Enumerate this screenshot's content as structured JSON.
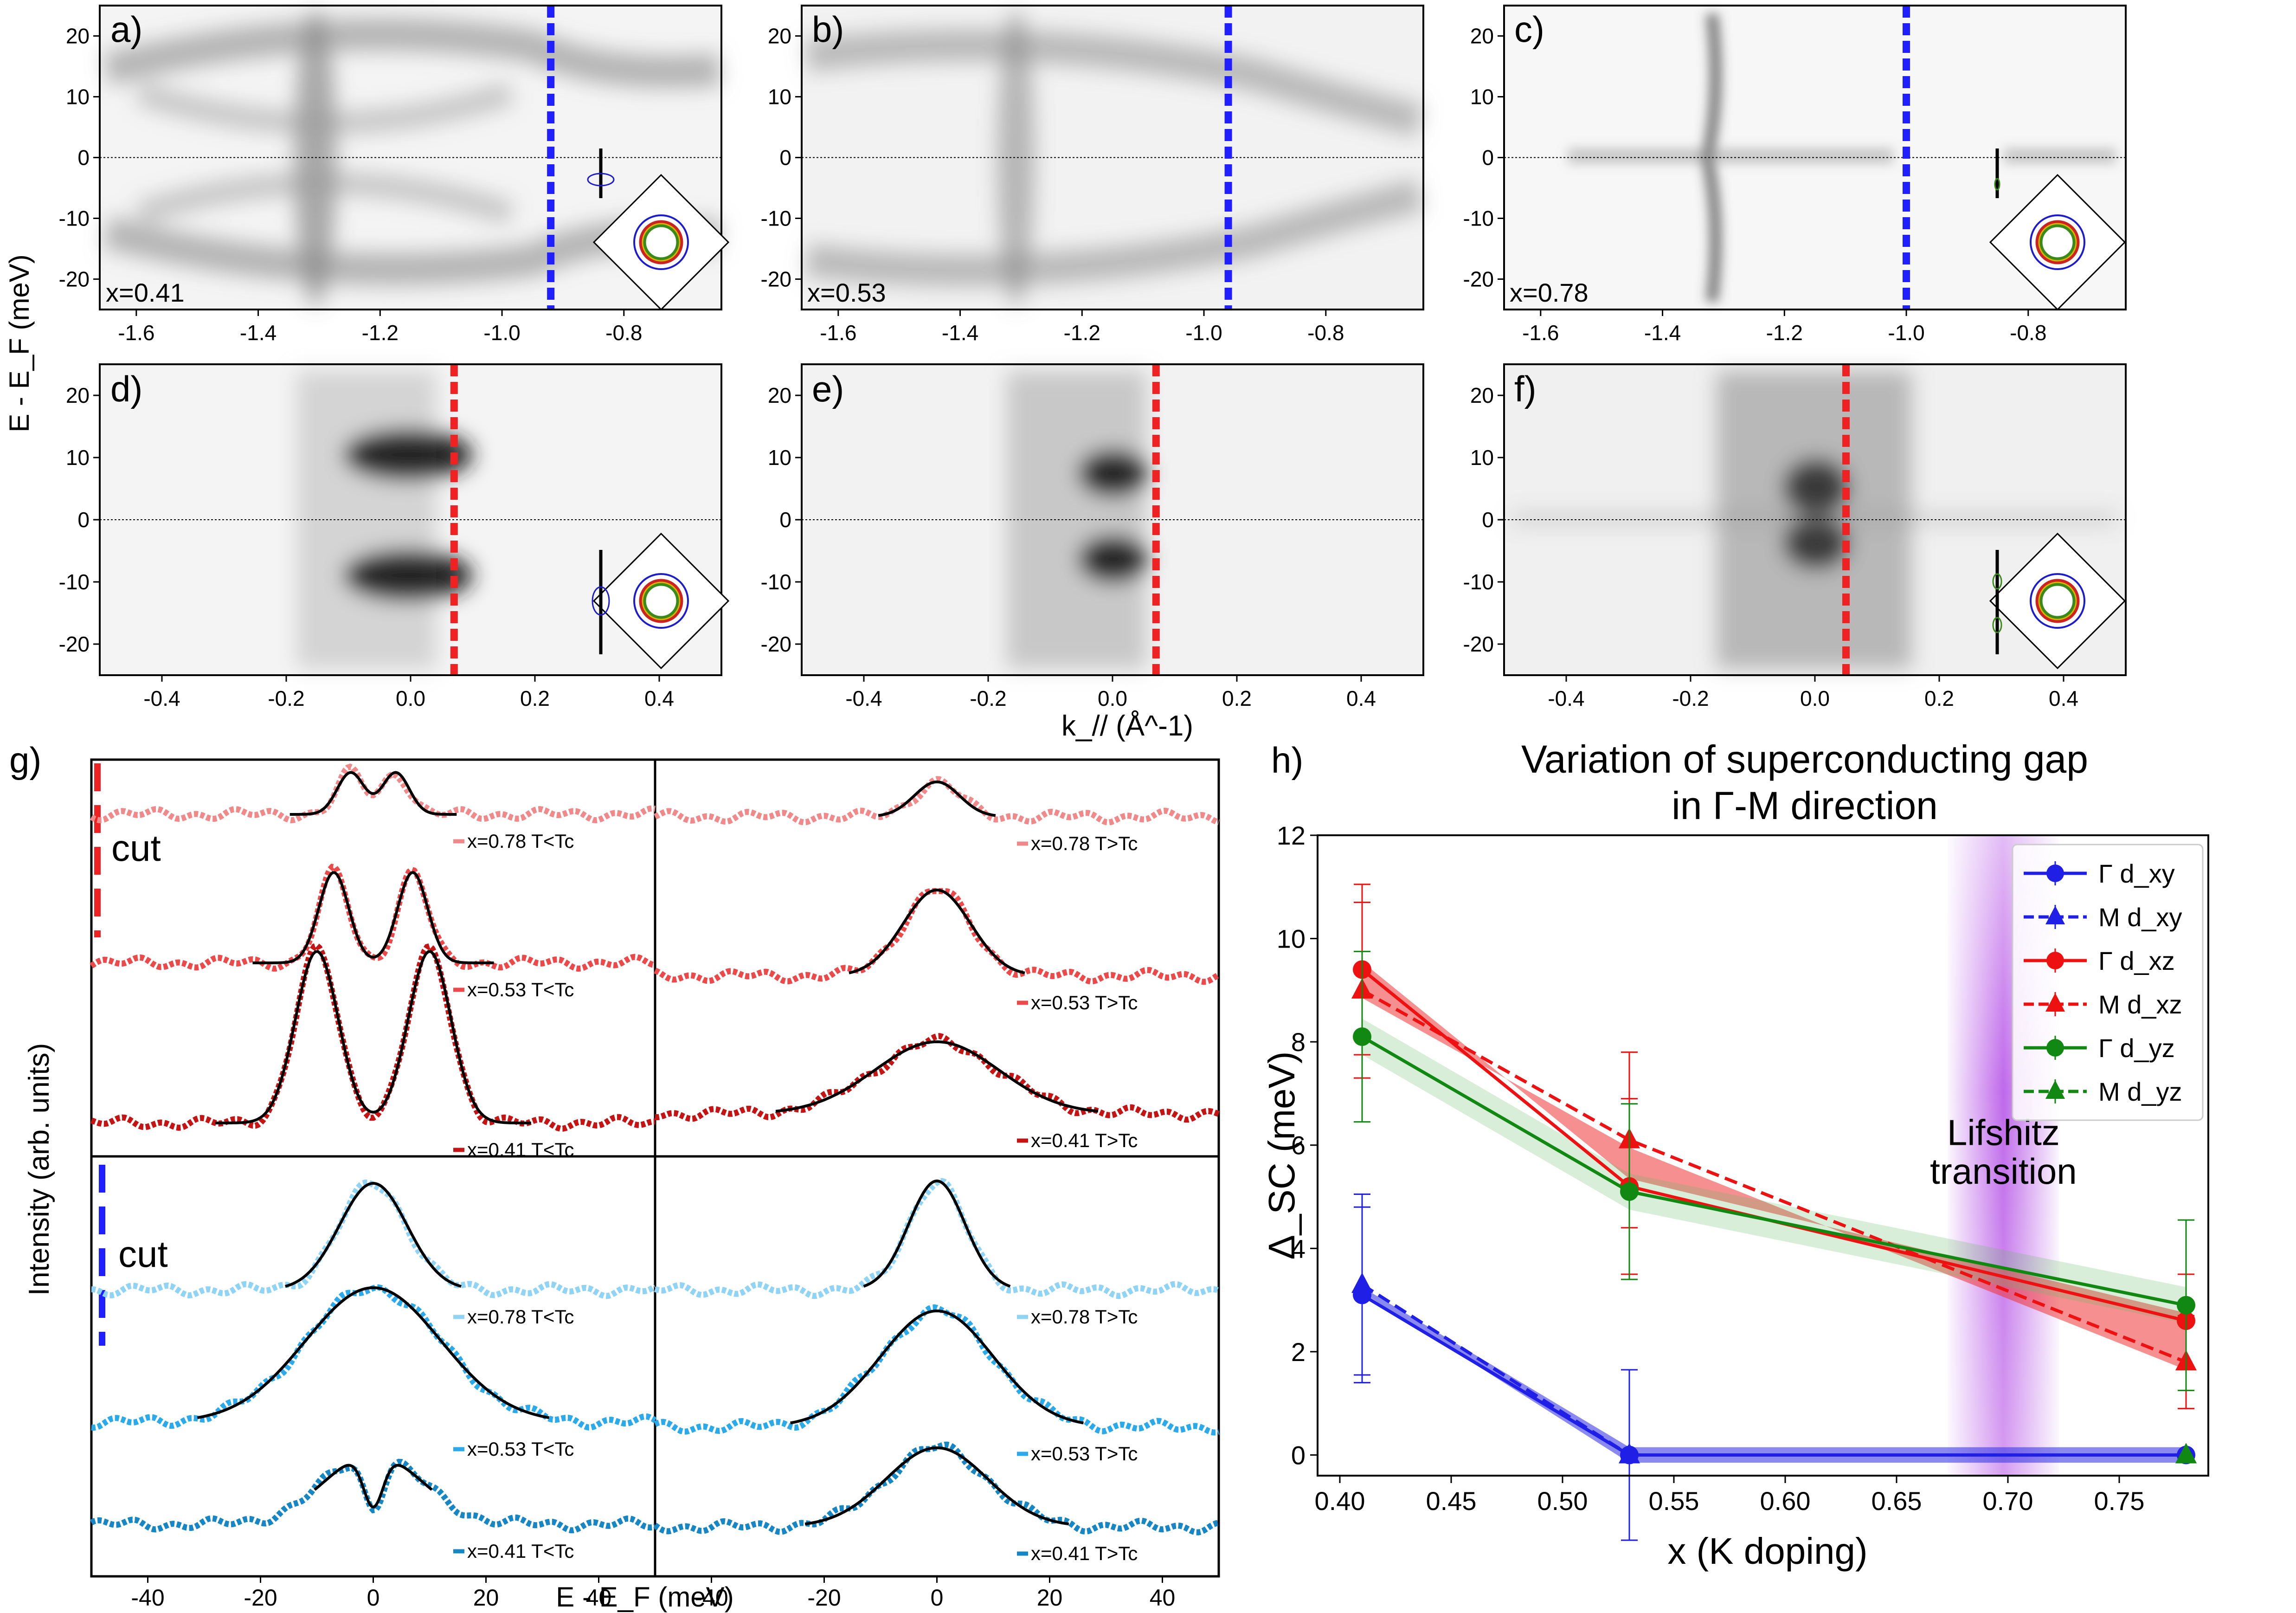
{
  "figure": {
    "panel_a": {
      "letter": "a)",
      "doping": "x=0.41",
      "cut_k": -0.92,
      "cut_color": "#1f1fff"
    },
    "panel_b": {
      "letter": "b)",
      "doping": "x=0.53",
      "cut_k": -0.96,
      "cut_color": "#1f1fff"
    },
    "panel_c": {
      "letter": "c)",
      "doping": "x=0.78",
      "cut_k": -1.0,
      "cut_color": "#1f1fff"
    },
    "panel_d": {
      "letter": "d)",
      "doping": "",
      "cut_k": 0.07,
      "cut_color": "#ee2222"
    },
    "panel_e": {
      "letter": "e)",
      "doping": "",
      "cut_k": 0.07,
      "cut_color": "#ee2222"
    },
    "panel_f": {
      "letter": "f)",
      "doping": "",
      "cut_k": 0.05,
      "cut_color": "#ee2222"
    },
    "panel_g": {
      "letter": "g)",
      "cut_label": "cut",
      "xlabel": "E - E_F (meV)",
      "ylabel": "Intensity (arb. units)"
    },
    "panel_h": {
      "letter": "h)"
    },
    "top_ylabel": "E - E_F (meV)",
    "top_xlabel": "k_// (Å^-1)"
  },
  "chart_data": [
    {
      "type": "heatmap",
      "id": "arpes-top-row",
      "panels": [
        "a",
        "b",
        "c"
      ],
      "xlabel": "",
      "ylabel": "E - E_F (meV)",
      "xlim": [
        -1.66,
        -0.64
      ],
      "ylim": [
        -25,
        25
      ],
      "xticks": [
        -1.6,
        -1.4,
        -1.2,
        -1.0,
        -0.8
      ],
      "yticks": [
        -20,
        -10,
        0,
        10,
        20
      ],
      "tick_labels_x": [
        "-1.6",
        "-1.4",
        "-1.2",
        "-1.0",
        "-0.8"
      ],
      "tick_labels_y": [
        "-20",
        "-10",
        "0",
        "10",
        "20"
      ]
    },
    {
      "type": "heatmap",
      "id": "arpes-bottom-row",
      "panels": [
        "d",
        "e",
        "f"
      ],
      "xlabel": "k_// (Å^-1)",
      "xlim": [
        -0.5,
        0.5
      ],
      "ylim": [
        -25,
        25
      ],
      "xticks": [
        -0.4,
        -0.2,
        0.0,
        0.2,
        0.4
      ],
      "yticks": [
        -20,
        -10,
        0,
        10,
        20
      ],
      "tick_labels_x": [
        "-0.4",
        "-0.2",
        "0.0",
        "0.2",
        "0.4"
      ],
      "tick_labels_y": [
        "-20",
        "-10",
        "0",
        "10",
        "20"
      ]
    },
    {
      "type": "line",
      "id": "edc-stacks",
      "xlabel": "E - E_F (meV)",
      "ylabel": "Intensity (arb. units)",
      "xlim": [
        -50,
        50
      ],
      "xticks": [
        -40,
        -20,
        0,
        20,
        40
      ],
      "tick_labels_x": [
        "-40",
        "-20",
        "0",
        "20",
        "40"
      ],
      "series": [
        {
          "name": "x=0.78 T<Tc",
          "quadrant": "top-left",
          "color": "#f08a8a",
          "shape": "double",
          "peak_meV": 4
        },
        {
          "name": "x=0.53 T<Tc",
          "quadrant": "top-left",
          "color": "#ec4a4a",
          "shape": "double",
          "peak_meV": 7
        },
        {
          "name": "x=0.41 T<Tc",
          "quadrant": "top-left",
          "color": "#c41414",
          "shape": "double",
          "peak_meV": 10
        },
        {
          "name": "x=0.78 T>Tc",
          "quadrant": "top-right",
          "color": "#f08a8a",
          "shape": "single",
          "width_meV": 4
        },
        {
          "name": "x=0.53 T>Tc",
          "quadrant": "top-right",
          "color": "#ec4a4a",
          "shape": "single",
          "width_meV": 6
        },
        {
          "name": "x=0.41 T>Tc",
          "quadrant": "top-right",
          "color": "#c41414",
          "shape": "single",
          "width_meV": 11
        },
        {
          "name": "x=0.78 T<Tc",
          "quadrant": "bottom-left",
          "color": "#8fd3f5",
          "shape": "single",
          "width_meV": 6
        },
        {
          "name": "x=0.53 T<Tc",
          "quadrant": "bottom-left",
          "color": "#2aaaea",
          "shape": "single",
          "width_meV": 12
        },
        {
          "name": "x=0.41 T<Tc",
          "quadrant": "bottom-left",
          "color": "#1786c4",
          "shape": "dip",
          "width_meV": 4
        },
        {
          "name": "x=0.78 T>Tc",
          "quadrant": "bottom-right",
          "color": "#8fd3f5",
          "shape": "single",
          "width_meV": 5
        },
        {
          "name": "x=0.53 T>Tc",
          "quadrant": "bottom-right",
          "color": "#2aaaea",
          "shape": "single",
          "width_meV": 10
        },
        {
          "name": "x=0.41 T>Tc",
          "quadrant": "bottom-right",
          "color": "#1786c4",
          "shape": "single",
          "width_meV": 9
        }
      ]
    },
    {
      "type": "line",
      "id": "gap-vs-doping",
      "title": "Variation of superconducting gap",
      "title2": "in Γ-M direction",
      "xlabel": "x (K doping)",
      "ylabel": "Δ_SC (meV)",
      "xlim": [
        0.39,
        0.79
      ],
      "ylim": [
        -0.4,
        12
      ],
      "xticks": [
        0.4,
        0.45,
        0.5,
        0.55,
        0.6,
        0.65,
        0.7,
        0.75
      ],
      "yticks": [
        0,
        2,
        4,
        6,
        8,
        10,
        12
      ],
      "tick_labels_x": [
        "0.40",
        "0.45",
        "0.50",
        "0.55",
        "0.60",
        "0.65",
        "0.70",
        "0.75"
      ],
      "tick_labels_y": [
        "0",
        "2",
        "4",
        "6",
        "8",
        "10",
        "12"
      ],
      "annotation": "Lifshitz",
      "annotation2": "transition",
      "annotation_x": 0.698,
      "series": [
        {
          "name": "Γ d_xy",
          "color": "#1f1fe6",
          "marker": "circle",
          "dash": false,
          "x": [
            0.41,
            0.53,
            0.78
          ],
          "y": [
            3.1,
            0.0,
            0.0
          ],
          "err": [
            1.7,
            1.65,
            0.0
          ]
        },
        {
          "name": "M d_xy",
          "color": "#1f1fe6",
          "marker": "triangle",
          "dash": true,
          "x": [
            0.41,
            0.53,
            0.78
          ],
          "y": [
            3.3,
            0.0,
            0.0
          ],
          "err": [
            1.75,
            0.0,
            0.0
          ]
        },
        {
          "name": "Γ d_xz",
          "color": "#ee1111",
          "marker": "circle",
          "dash": false,
          "x": [
            0.41,
            0.53,
            0.78
          ],
          "y": [
            9.4,
            5.2,
            2.6
          ],
          "err": [
            1.65,
            1.7,
            0.9
          ]
        },
        {
          "name": "M d_xz",
          "color": "#ee1111",
          "marker": "triangle",
          "dash": true,
          "x": [
            0.41,
            0.53,
            0.78
          ],
          "y": [
            9.0,
            6.1,
            1.8
          ],
          "err": [
            1.7,
            1.7,
            0.9
          ]
        },
        {
          "name": "Γ d_yz",
          "color": "#118811",
          "marker": "circle",
          "dash": false,
          "x": [
            0.41,
            0.53,
            0.78
          ],
          "y": [
            8.1,
            5.1,
            2.9
          ],
          "err": [
            1.65,
            1.7,
            1.65
          ]
        },
        {
          "name": "M d_yz",
          "color": "#118811",
          "marker": "triangle",
          "dash": true,
          "x": [
            0.41,
            0.53,
            0.78
          ],
          "y": [
            0.0,
            0.0,
            0.0
          ],
          "err": [
            0.0,
            0.0,
            0.0
          ],
          "show": [
            false,
            false,
            true
          ]
        }
      ]
    }
  ]
}
